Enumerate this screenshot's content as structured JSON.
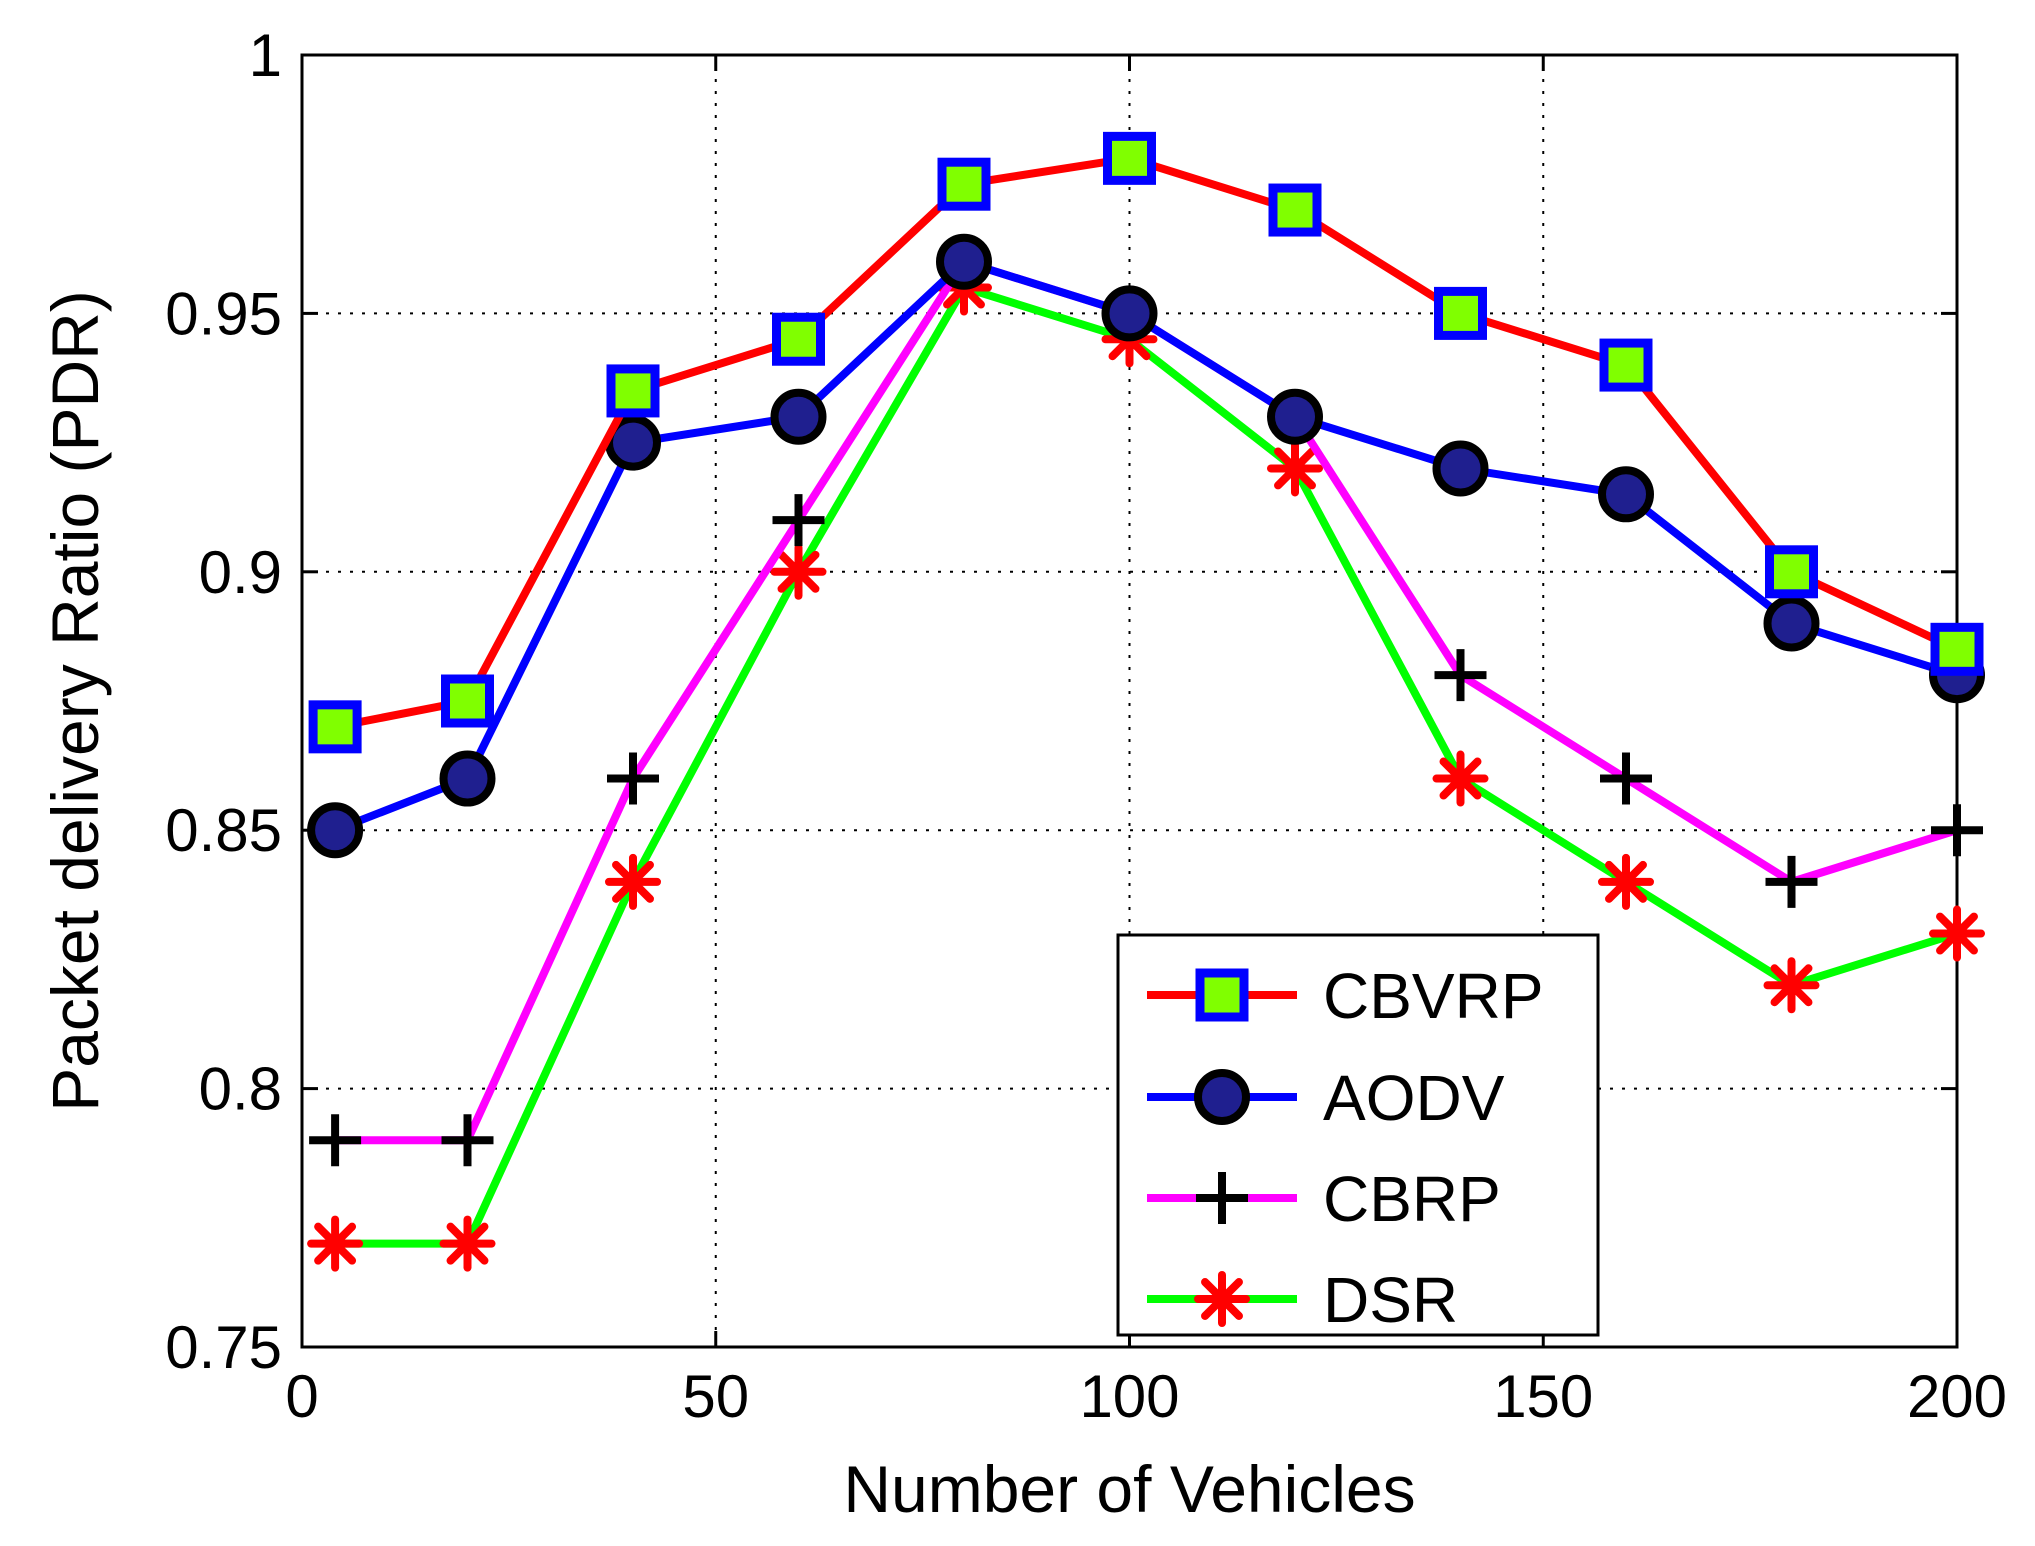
{
  "chart_data": {
    "type": "line",
    "title": "",
    "xlabel": "Number of Vehicles",
    "ylabel": "Packet delivery Ratio  (PDR)",
    "xlim": [
      0,
      200
    ],
    "ylim": [
      0.75,
      1
    ],
    "xticks": [
      0,
      50,
      100,
      150,
      200
    ],
    "xtick_labels": [
      "0",
      "50",
      "100",
      "150",
      "200"
    ],
    "yticks": [
      0.75,
      0.8,
      0.85,
      0.9,
      0.95,
      1
    ],
    "ytick_labels": [
      "0.75",
      "0.8",
      "0.85",
      "0.9",
      "0.95",
      "1"
    ],
    "grid": true,
    "legend_position": "bottom-right",
    "x": [
      4,
      20,
      40,
      60,
      80,
      100,
      120,
      140,
      160,
      180,
      200
    ],
    "series": [
      {
        "name": "CBVRP",
        "line_color": "#ff0000",
        "marker": "square",
        "marker_edge": "#0000ff",
        "marker_fill": "#80ff00",
        "values": [
          0.87,
          0.875,
          0.935,
          0.945,
          0.975,
          0.98,
          0.97,
          0.95,
          0.94,
          0.9,
          0.885
        ]
      },
      {
        "name": "AODV",
        "line_color": "#0000ff",
        "marker": "circle",
        "marker_edge": "#000000",
        "marker_fill": "#1f1f8f",
        "values": [
          0.85,
          0.86,
          0.925,
          0.93,
          0.96,
          0.95,
          0.93,
          0.92,
          0.915,
          0.89,
          0.88
        ]
      },
      {
        "name": "CBRP",
        "line_color": "#ff00ff",
        "marker": "plus",
        "marker_edge": "#000000",
        "marker_fill": "none",
        "values": [
          0.79,
          0.79,
          0.86,
          0.91,
          0.96,
          0.95,
          0.93,
          0.88,
          0.86,
          0.84,
          0.85
        ]
      },
      {
        "name": "DSR",
        "line_color": "#00ff00",
        "marker": "asterisk",
        "marker_edge": "#ff0000",
        "marker_fill": "#ff0000",
        "values": [
          0.77,
          0.77,
          0.84,
          0.9,
          0.955,
          0.945,
          0.92,
          0.86,
          0.84,
          0.82,
          0.83
        ]
      }
    ]
  }
}
